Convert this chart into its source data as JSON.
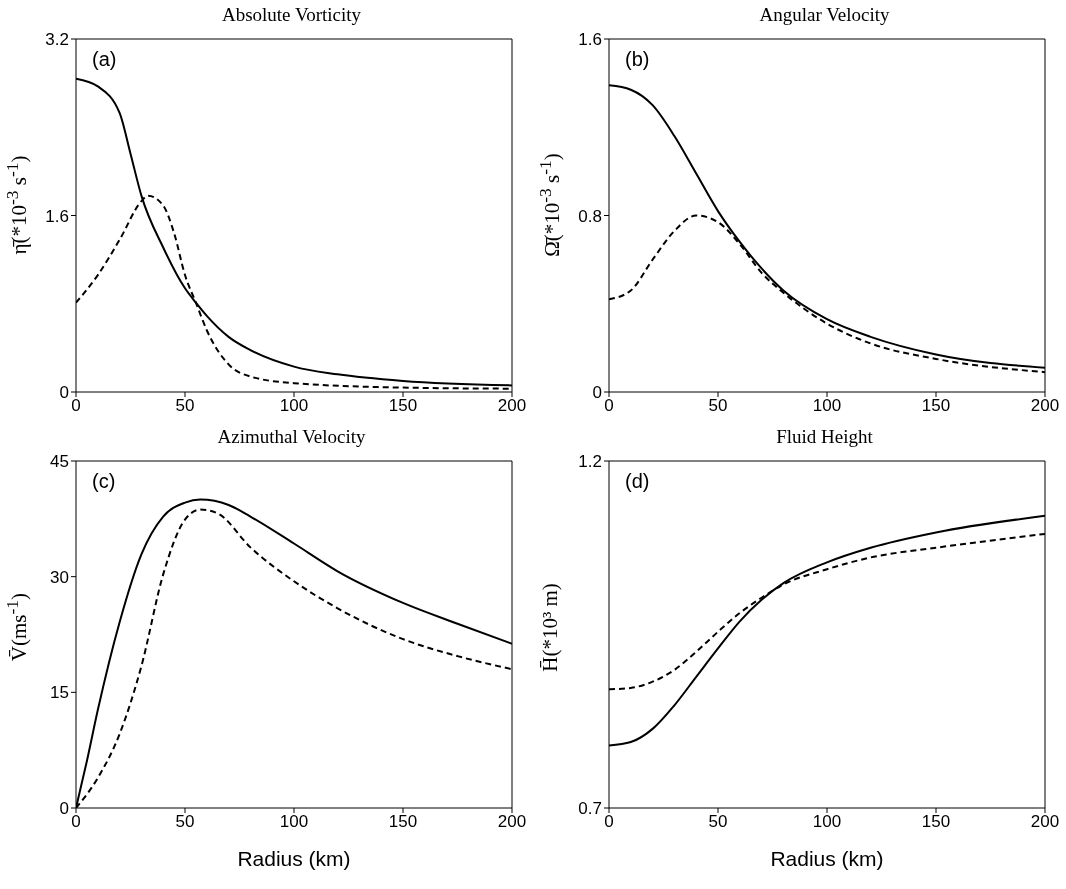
{
  "chart_data": [
    {
      "type": "line",
      "title": "Absolute Vorticity",
      "ylabel": "η̄(*10$^{-3}$ s$^{-1}$)",
      "annotations": [
        "(a)"
      ],
      "xlim": [
        0,
        200
      ],
      "xticks": [
        0,
        50,
        100,
        150,
        200
      ],
      "ylim": [
        0,
        3.2
      ],
      "yticks": [
        0,
        1.6,
        3.2
      ],
      "grid": false,
      "series": [
        {
          "color": "#000000",
          "line_style": "solid",
          "x": [
            0,
            10,
            20,
            25,
            30,
            40,
            50,
            55,
            60,
            70,
            80,
            100,
            120,
            150,
            200
          ],
          "values": [
            2.84,
            2.77,
            2.53,
            2.16,
            1.78,
            1.31,
            0.94,
            0.81,
            0.69,
            0.5,
            0.38,
            0.23,
            0.16,
            0.1,
            0.06
          ]
        },
        {
          "color": "#000000",
          "line_style": "dashed",
          "x": [
            0,
            10,
            20,
            30,
            33,
            40,
            45,
            50,
            55,
            60,
            70,
            80,
            100,
            150,
            200
          ],
          "values": [
            0.81,
            1.06,
            1.38,
            1.73,
            1.78,
            1.69,
            1.44,
            1.06,
            0.81,
            0.56,
            0.25,
            0.14,
            0.08,
            0.04,
            0.03
          ]
        }
      ]
    },
    {
      "type": "line",
      "title": "Angular Velocity",
      "ylabel": "Ω̄(*10$^{-3}$ s$^{-1}$)",
      "annotations": [
        "(b)"
      ],
      "xlim": [
        0,
        200
      ],
      "xticks": [
        0,
        50,
        100,
        150,
        200
      ],
      "ylim": [
        0,
        1.6
      ],
      "yticks": [
        0,
        0.8,
        1.6
      ],
      "grid": false,
      "series": [
        {
          "color": "#000000",
          "line_style": "solid",
          "x": [
            0,
            10,
            20,
            30,
            40,
            50,
            60,
            70,
            80,
            100,
            120,
            150,
            200
          ],
          "values": [
            1.39,
            1.37,
            1.3,
            1.16,
            0.99,
            0.82,
            0.68,
            0.56,
            0.46,
            0.33,
            0.25,
            0.17,
            0.11
          ]
        },
        {
          "color": "#000000",
          "line_style": "dashed",
          "x": [
            0,
            10,
            20,
            30,
            40,
            50,
            60,
            70,
            80,
            100,
            120,
            150,
            200
          ],
          "values": [
            0.42,
            0.46,
            0.6,
            0.73,
            0.8,
            0.77,
            0.67,
            0.54,
            0.45,
            0.31,
            0.22,
            0.15,
            0.09
          ]
        }
      ]
    },
    {
      "type": "line",
      "title": "Azimuthal Velocity",
      "xlabel": "Radius (km)",
      "ylabel": "V̄(ms$^{-1}$)",
      "annotations": [
        "(c)"
      ],
      "xlim": [
        0,
        200
      ],
      "xticks": [
        0,
        50,
        100,
        150,
        200
      ],
      "ylim": [
        0,
        45
      ],
      "yticks": [
        0,
        15,
        30,
        45
      ],
      "grid": false,
      "series": [
        {
          "color": "#000000",
          "line_style": "solid",
          "x": [
            0,
            5,
            10,
            20,
            30,
            40,
            50,
            57,
            70,
            80,
            100,
            120,
            150,
            175,
            200
          ],
          "values": [
            0,
            6.1,
            12.7,
            24.1,
            32.9,
            37.8,
            39.6,
            40,
            39.3,
            37.8,
            34.3,
            30.7,
            26.6,
            23.9,
            21.3
          ]
        },
        {
          "color": "#000000",
          "line_style": "dashed",
          "x": [
            0,
            10,
            20,
            30,
            40,
            50,
            57,
            65,
            80,
            100,
            120,
            150,
            175,
            200
          ],
          "values": [
            0,
            3.9,
            9.6,
            18.4,
            30.3,
            37.4,
            38.7,
            38.2,
            33.8,
            29.4,
            25.9,
            21.9,
            19.7,
            18
          ]
        }
      ]
    },
    {
      "type": "line",
      "title": "Fluid Height",
      "xlabel": "Radius (km)",
      "ylabel": "H̄(*10³ m)",
      "annotations": [
        "(d)"
      ],
      "xlim": [
        0,
        200
      ],
      "xticks": [
        0,
        50,
        100,
        150,
        200
      ],
      "ylim": [
        0.7,
        1.2
      ],
      "yticks": [
        0.7,
        1.2
      ],
      "grid": false,
      "series": [
        {
          "color": "#000000",
          "line_style": "solid",
          "x": [
            0,
            10,
            20,
            30,
            40,
            50,
            60,
            70,
            80,
            100,
            120,
            150,
            200
          ],
          "values": [
            0.79,
            0.795,
            0.814,
            0.848,
            0.889,
            0.93,
            0.969,
            1.0,
            1.024,
            1.054,
            1.075,
            1.097,
            1.121
          ]
        },
        {
          "color": "#000000",
          "line_style": "dashed",
          "x": [
            0,
            10,
            20,
            30,
            40,
            50,
            60,
            70,
            80,
            100,
            120,
            150,
            200
          ],
          "values": [
            0.871,
            0.873,
            0.882,
            0.899,
            0.925,
            0.954,
            0.981,
            1.003,
            1.022,
            1.044,
            1.061,
            1.075,
            1.095
          ]
        }
      ]
    }
  ]
}
